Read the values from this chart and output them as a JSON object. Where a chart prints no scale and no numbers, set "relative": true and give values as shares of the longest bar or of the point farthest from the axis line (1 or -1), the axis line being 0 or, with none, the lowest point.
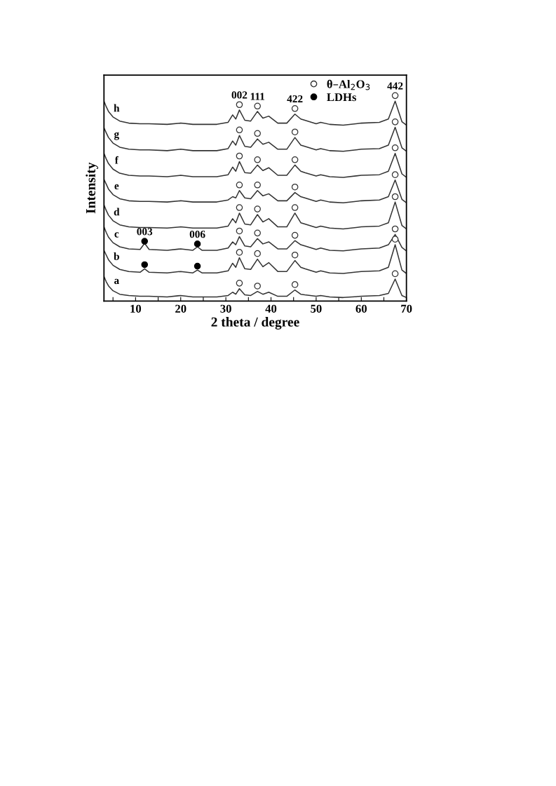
{
  "chart_data": {
    "type": "line",
    "relative": true,
    "xlabel": "2 theta / degree",
    "ylabel": "Intensity",
    "xlim": [
      3,
      70
    ],
    "xticks": [
      {
        "value": 5,
        "label": null
      },
      10,
      {
        "value": 15,
        "label": null
      },
      20,
      {
        "value": 25,
        "label": null
      },
      30,
      {
        "value": 35,
        "label": null
      },
      40,
      {
        "value": 45,
        "label": null
      },
      50,
      {
        "value": 55,
        "label": null
      },
      60,
      {
        "value": 65,
        "label": null
      },
      70
    ],
    "tick_labels": "x",
    "grid": false,
    "legend": "top right",
    "marker": "none",
    "line_style": "solid",
    "x": [
      3,
      3.5,
      4,
      5,
      6.5,
      8.5,
      11,
      12,
      13,
      17,
      20,
      22.7,
      23.7,
      24.7,
      28,
      30.5,
      31.5,
      32.2,
      33,
      34.2,
      35.5,
      37,
      38.2,
      39.5,
      41.5,
      43.5,
      45.3,
      46.6,
      47.5,
      50,
      51,
      53,
      56,
      60,
      64,
      66,
      67.5,
      69,
      70
    ],
    "series": [
      {
        "name": "h",
        "color": "#333333",
        "values": [
          0.973,
          0.946,
          0.923,
          0.896,
          0.876,
          0.866,
          0.863,
          0.863,
          0.863,
          0.86,
          0.866,
          0.86,
          0.86,
          0.86,
          0.86,
          0.87,
          0.906,
          0.886,
          0.93,
          0.88,
          0.876,
          0.923,
          0.89,
          0.9,
          0.866,
          0.866,
          0.91,
          0.886,
          0.88,
          0.863,
          0.87,
          0.86,
          0.856,
          0.866,
          0.87,
          0.886,
          0.973,
          0.873,
          0.856
        ]
      },
      {
        "name": "g",
        "color": "#333333",
        "values": [
          0.843,
          0.819,
          0.796,
          0.769,
          0.749,
          0.739,
          0.736,
          0.736,
          0.736,
          0.732,
          0.739,
          0.732,
          0.732,
          0.732,
          0.732,
          0.742,
          0.779,
          0.759,
          0.806,
          0.753,
          0.749,
          0.789,
          0.763,
          0.773,
          0.739,
          0.739,
          0.796,
          0.759,
          0.753,
          0.736,
          0.742,
          0.732,
          0.729,
          0.739,
          0.742,
          0.759,
          0.846,
          0.746,
          0.729
        ]
      },
      {
        "name": "f",
        "color": "#333333",
        "values": [
          0.719,
          0.692,
          0.669,
          0.642,
          0.622,
          0.612,
          0.609,
          0.609,
          0.609,
          0.605,
          0.612,
          0.605,
          0.605,
          0.605,
          0.605,
          0.615,
          0.652,
          0.632,
          0.679,
          0.625,
          0.622,
          0.662,
          0.635,
          0.649,
          0.612,
          0.612,
          0.662,
          0.632,
          0.625,
          0.609,
          0.615,
          0.605,
          0.602,
          0.612,
          0.615,
          0.632,
          0.719,
          0.619,
          0.602
        ]
      },
      {
        "name": "e",
        "color": "#333333",
        "values": [
          0.592,
          0.569,
          0.545,
          0.518,
          0.498,
          0.488,
          0.485,
          0.485,
          0.485,
          0.482,
          0.488,
          0.482,
          0.482,
          0.482,
          0.482,
          0.492,
          0.508,
          0.502,
          0.538,
          0.502,
          0.498,
          0.538,
          0.512,
          0.522,
          0.488,
          0.488,
          0.528,
          0.508,
          0.502,
          0.485,
          0.492,
          0.482,
          0.478,
          0.488,
          0.492,
          0.508,
          0.589,
          0.495,
          0.478
        ]
      },
      {
        "name": "d",
        "color": "#333333",
        "values": [
          0.468,
          0.441,
          0.418,
          0.391,
          0.371,
          0.361,
          0.358,
          0.358,
          0.358,
          0.355,
          0.361,
          0.355,
          0.355,
          0.355,
          0.355,
          0.365,
          0.401,
          0.381,
          0.428,
          0.375,
          0.371,
          0.421,
          0.385,
          0.401,
          0.361,
          0.361,
          0.428,
          0.381,
          0.375,
          0.358,
          0.365,
          0.355,
          0.351,
          0.361,
          0.365,
          0.381,
          0.482,
          0.368,
          0.351
        ]
      },
      {
        "name": "c",
        "color": "#333333",
        "values": [
          0.361,
          0.334,
          0.311,
          0.284,
          0.264,
          0.254,
          0.251,
          0.281,
          0.251,
          0.247,
          0.254,
          0.247,
          0.264,
          0.247,
          0.247,
          0.258,
          0.288,
          0.274,
          0.314,
          0.268,
          0.264,
          0.304,
          0.278,
          0.288,
          0.254,
          0.254,
          0.294,
          0.274,
          0.268,
          0.251,
          0.258,
          0.247,
          0.244,
          0.254,
          0.258,
          0.274,
          0.324,
          0.261,
          0.244
        ]
      },
      {
        "name": "b",
        "color": "#333333",
        "values": [
          0.247,
          0.224,
          0.201,
          0.174,
          0.154,
          0.144,
          0.14,
          0.157,
          0.14,
          0.137,
          0.144,
          0.137,
          0.151,
          0.137,
          0.137,
          0.147,
          0.184,
          0.164,
          0.211,
          0.157,
          0.154,
          0.204,
          0.167,
          0.187,
          0.144,
          0.144,
          0.197,
          0.164,
          0.157,
          0.14,
          0.147,
          0.137,
          0.134,
          0.144,
          0.147,
          0.164,
          0.274,
          0.151,
          0.134
        ]
      },
      {
        "name": "a",
        "color": "#333333",
        "values": [
          0.12,
          0.094,
          0.074,
          0.05,
          0.033,
          0.027,
          0.023,
          0.023,
          0.023,
          0.02,
          0.027,
          0.02,
          0.02,
          0.02,
          0.02,
          0.027,
          0.043,
          0.033,
          0.06,
          0.03,
          0.027,
          0.047,
          0.033,
          0.043,
          0.023,
          0.023,
          0.054,
          0.033,
          0.03,
          0.023,
          0.027,
          0.02,
          0.017,
          0.023,
          0.027,
          0.037,
          0.107,
          0.027,
          0.017
        ]
      },
      {
        "name": "θ–Al$_{2}$O$_{3}$",
        "type": "scatter",
        "marker": "circle",
        "color": "#333333",
        "x": [
          33,
          37,
          45.3,
          67.5,
          33,
          37,
          45.3,
          67.5,
          33,
          37,
          45.3,
          67.5,
          33,
          37,
          45.3,
          67.5,
          33,
          37,
          45.3,
          67.5,
          33,
          37,
          45.3,
          67.5,
          33,
          37,
          45.3,
          67.5,
          33,
          37,
          45.3,
          67.5
        ],
        "values": [
          0.956,
          0.949,
          0.937,
          1.0,
          0.833,
          0.816,
          0.823,
          0.872,
          0.706,
          0.688,
          0.688,
          0.746,
          0.565,
          0.565,
          0.555,
          0.615,
          0.455,
          0.448,
          0.455,
          0.508,
          0.341,
          0.331,
          0.32,
          0.351,
          0.237,
          0.231,
          0.224,
          0.301,
          0.087,
          0.073,
          0.08,
          0.133
        ]
      },
      {
        "name": "LDHs",
        "type": "scatter",
        "marker": "circle",
        "color": "#000000",
        "x": [
          12,
          23.7,
          12,
          23.7
        ],
        "values": [
          0.291,
          0.278,
          0.177,
          0.17
        ]
      }
    ],
    "annotations": [
      {
        "text": "002",
        "x": 33,
        "y": 0.956
      },
      {
        "text": "111",
        "x": 37,
        "y": 0.949
      },
      {
        "text": "422",
        "x": 45.3,
        "y": 0.937
      },
      {
        "text": "442",
        "x": 67.5,
        "y": 1.0
      },
      {
        "text": "003",
        "x": 12,
        "y": 0.291
      },
      {
        "text": "006",
        "x": 23.7,
        "y": 0.278
      }
    ]
  }
}
